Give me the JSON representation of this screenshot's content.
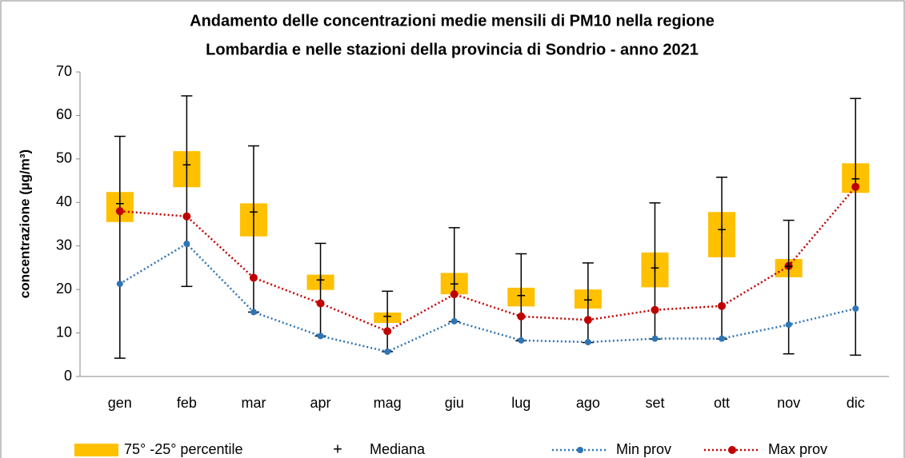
{
  "chart_data": {
    "type": "box",
    "title": [
      "Andamento delle concentrazioni medie mensili di PM10 nella regione",
      "Lombardia e nelle stazioni della provincia di Sondrio - anno 2021"
    ],
    "y_label": "concentrazione (µg/m³)",
    "categories": [
      "gen",
      "feb",
      "mar",
      "apr",
      "mag",
      "giu",
      "lug",
      "ago",
      "set",
      "ott",
      "nov",
      "dic"
    ],
    "ylim": [
      0,
      70
    ],
    "yticks": [
      0,
      10,
      20,
      30,
      40,
      50,
      60,
      70
    ],
    "box": {
      "name": "75° -25° percentile",
      "color": "#ffc000",
      "low": [
        35.5,
        43.5,
        32.2,
        19.9,
        12.3,
        18.9,
        16.1,
        15.6,
        20.5,
        27.4,
        22.8,
        42.2
      ],
      "high": [
        42.4,
        51.8,
        39.8,
        23.4,
        14.7,
        23.8,
        20.4,
        20.0,
        28.5,
        37.8,
        27.0,
        49.0
      ]
    },
    "whiskers": {
      "color": "#000000",
      "low": [
        4.2,
        20.7,
        14.8,
        9.3,
        5.7,
        12.6,
        8.2,
        7.8,
        8.6,
        8.6,
        5.2,
        4.9
      ],
      "high": [
        55.2,
        64.5,
        53.0,
        30.6,
        19.6,
        34.2,
        28.2,
        26.1,
        39.9,
        45.8,
        35.9,
        63.9
      ]
    },
    "median": {
      "name": "Mediana",
      "symbol": "+",
      "color": "#000000",
      "values": [
        39.5,
        48.4,
        37.5,
        21.9,
        13.6,
        21.0,
        18.3,
        17.3,
        24.7,
        33.5,
        25.0,
        45.2
      ]
    },
    "series": [
      {
        "name": "Min prov",
        "color": "#2e75b6",
        "values": [
          21.3,
          30.5,
          14.8,
          9.3,
          5.7,
          12.7,
          8.3,
          7.9,
          8.7,
          8.7,
          11.9,
          15.6
        ]
      },
      {
        "name": "Max prov",
        "color": "#c00000",
        "values": [
          38.0,
          36.8,
          22.7,
          16.8,
          10.4,
          18.9,
          13.8,
          13.0,
          15.3,
          16.2,
          25.4,
          43.6
        ]
      }
    ]
  }
}
